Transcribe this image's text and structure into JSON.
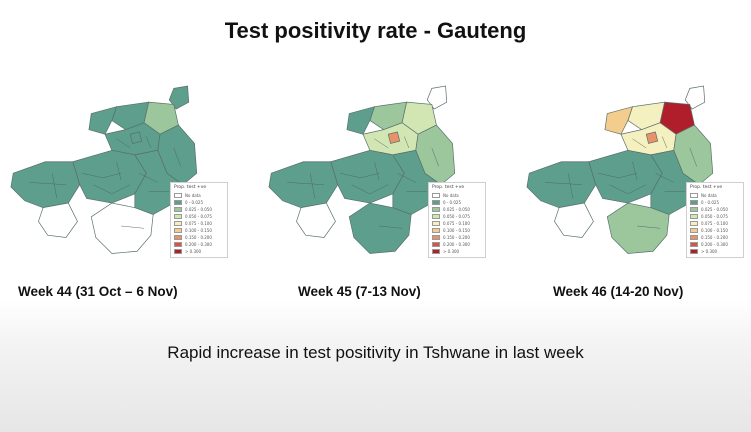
{
  "title": "Test positivity rate - Gauteng",
  "subtitle": "Rapid increase in test positivity in Tshwane in last week",
  "legend_title": "Prop. test +ve",
  "legend_items": [
    {
      "label": "No data",
      "color": "#ffffff"
    },
    {
      "label": "0 - 0.025",
      "color": "#5d9e8c"
    },
    {
      "label": "0.025 - 0.050",
      "color": "#9cc69c"
    },
    {
      "label": "0.050 - 0.075",
      "color": "#d2e6b4"
    },
    {
      "label": "0.075 - 0.100",
      "color": "#f5f0c0"
    },
    {
      "label": "0.100 - 0.150",
      "color": "#f4cc8e"
    },
    {
      "label": "0.150 - 0.200",
      "color": "#e8926a"
    },
    {
      "label": "0.200 - 0.300",
      "color": "#d65544"
    },
    {
      "label": "> 0.300",
      "color": "#b01e2c"
    }
  ],
  "maps": [
    {
      "caption": "Week 44 (31 Oct – 6 Nov)",
      "regions": {
        "tshwane_north": "#5d9e8c",
        "tshwane_ne": "#9cc69c",
        "tshwane_nw": "#5d9e8c",
        "tshwane_central": "#5d9e8c",
        "tshwane_hotspot": "#5d9e8c",
        "johannesburg": "#5d9e8c",
        "ekurhuleni": "#5d9e8c",
        "west_rand": "#5d9e8c",
        "east": "#5d9e8c",
        "sedibeng": "#ffffff",
        "west_gap": "#ffffff",
        "tail": "#5d9e8c"
      }
    },
    {
      "caption": "Week 45 (7-13 Nov)",
      "regions": {
        "tshwane_north": "#9cc69c",
        "tshwane_ne": "#d2e6b4",
        "tshwane_nw": "#5d9e8c",
        "tshwane_central": "#d2e6b4",
        "tshwane_hotspot": "#e8926a",
        "johannesburg": "#5d9e8c",
        "ekurhuleni": "#5d9e8c",
        "west_rand": "#5d9e8c",
        "east": "#9cc69c",
        "sedibeng": "#5d9e8c",
        "west_gap": "#ffffff",
        "tail": "#ffffff"
      }
    },
    {
      "caption": "Week 46 (14-20 Nov)",
      "regions": {
        "tshwane_north": "#f5f0c0",
        "tshwane_ne": "#b01e2c",
        "tshwane_nw": "#f4cc8e",
        "tshwane_central": "#f5f0c0",
        "tshwane_hotspot": "#e8926a",
        "johannesburg": "#5d9e8c",
        "ekurhuleni": "#5d9e8c",
        "west_rand": "#5d9e8c",
        "east": "#9cc69c",
        "sedibeng": "#9cc69c",
        "west_gap": "#ffffff",
        "tail": "#ffffff"
      }
    }
  ]
}
